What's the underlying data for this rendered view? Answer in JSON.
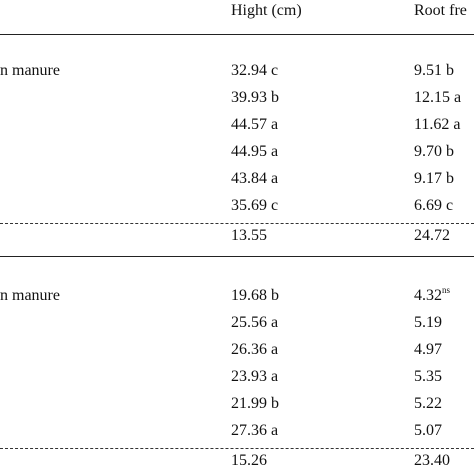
{
  "header": {
    "col_height": "Hight (cm)",
    "col_root": "Root fre"
  },
  "section1": {
    "label": "n manure",
    "rows": [
      {
        "height": "32.94 c",
        "root": "9.51 b"
      },
      {
        "height": "39.93 b",
        "root": "12.15 a"
      },
      {
        "height": "44.57 a",
        "root": "11.62 a"
      },
      {
        "height": "44.95 a",
        "root": "9.70 b"
      },
      {
        "height": "43.84 a",
        "root": "9.17 b"
      },
      {
        "height": "35.69 c",
        "root": "6.69 c"
      }
    ],
    "summary": {
      "height": "13.55",
      "root": "24.72"
    }
  },
  "section2": {
    "label": "n manure",
    "rows": [
      {
        "height": "19.68 b",
        "root": "4.32",
        "root_sup": "ns"
      },
      {
        "height": "25.56 a",
        "root": "5.19"
      },
      {
        "height": "26.36 a",
        "root": "4.97"
      },
      {
        "height": "23.93 a",
        "root": "5.35"
      },
      {
        "height": "21.99 b",
        "root": "5.22"
      },
      {
        "height": "27.36 a",
        "root": "5.07"
      }
    ],
    "summary": {
      "height": "15.26",
      "root": "23.40"
    }
  }
}
